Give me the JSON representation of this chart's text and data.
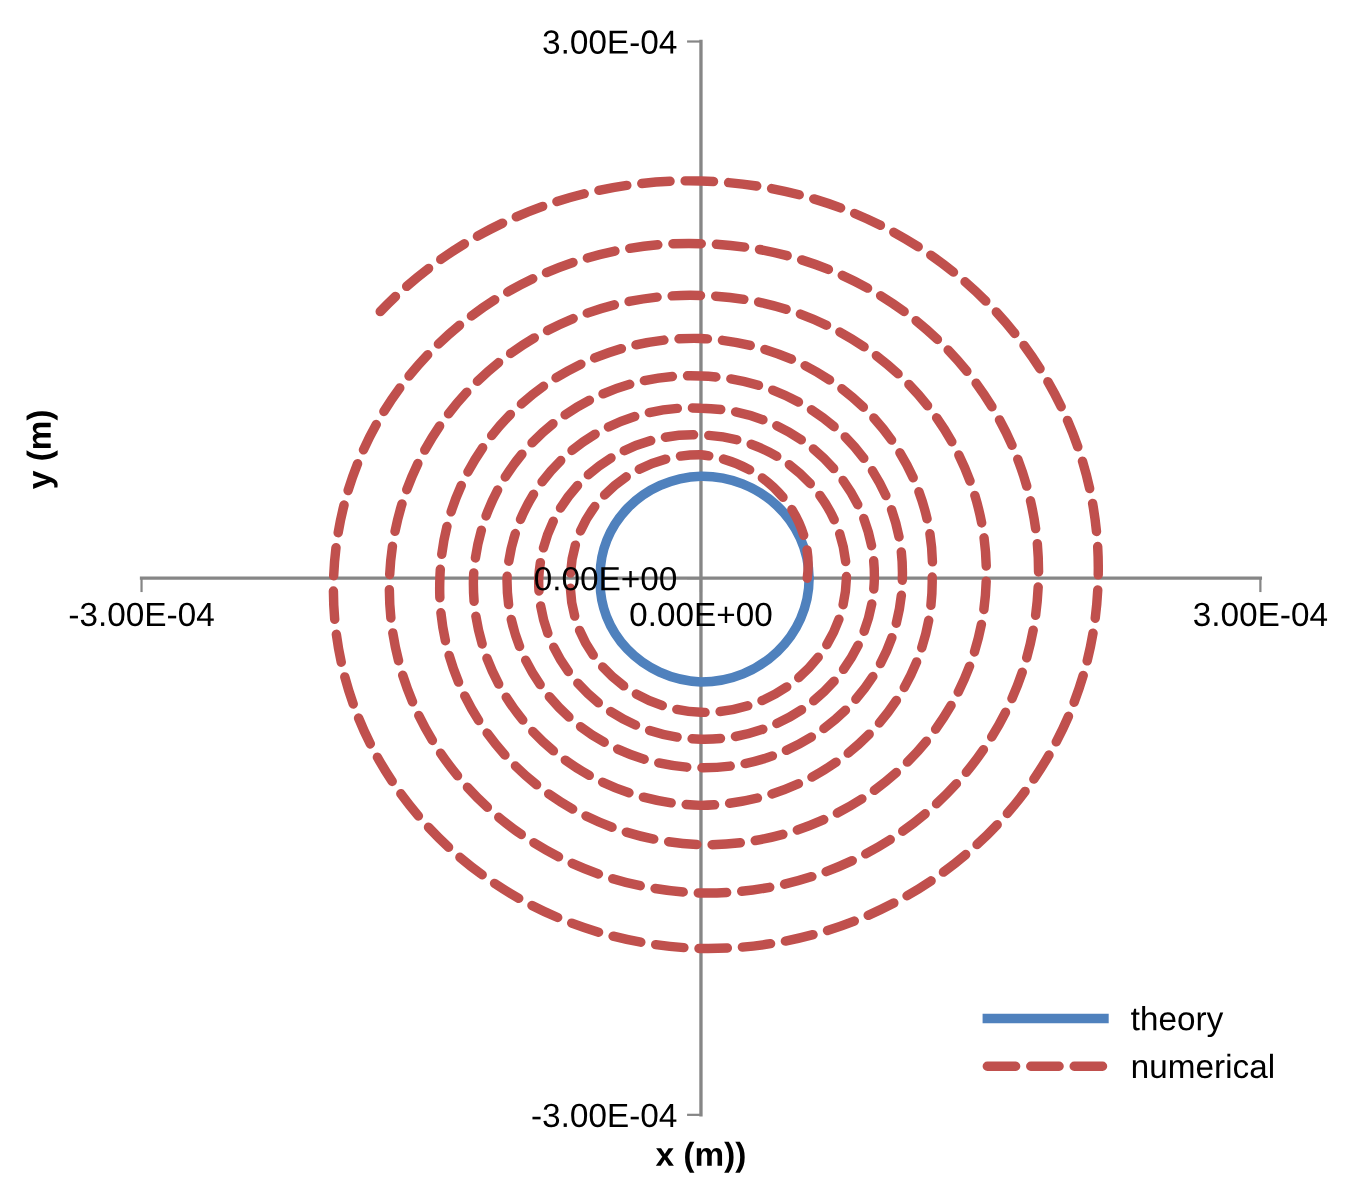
{
  "chart_data": {
    "type": "line",
    "xlabel": "x (m))",
    "ylabel": "y (m)",
    "xlim": [
      -0.0003,
      0.0003
    ],
    "ylim": [
      -0.0003,
      0.0003
    ],
    "xticks": [
      {
        "value": -0.0003,
        "label": "-3.00E-04"
      },
      {
        "value": 0,
        "label": "0.00E+00"
      },
      {
        "value": 0.0003,
        "label": "3.00E-04"
      }
    ],
    "yticks": [
      {
        "value": -0.0003,
        "label": "-3.00E-04"
      },
      {
        "value": 0,
        "label": "0.00E+00"
      },
      {
        "value": 0.0003,
        "label": "3.00E-04"
      }
    ],
    "grid": false,
    "legend": "bottom right",
    "marker": "none",
    "series": [
      {
        "name": "theory",
        "color": "#4f81bd",
        "line_style": "solid",
        "x": [
          5.8e-05,
          0,
          -5.4e-05,
          0,
          5.8e-05
        ],
        "values": [
          0,
          5.7e-05,
          0,
          -5.8e-05,
          0
        ]
      },
      {
        "name": "numerical",
        "color": "#c0504d",
        "line_style": "dashed",
        "x": [
          5.7e-05,
          0,
          -7e-05,
          0,
          7.8e-05,
          0,
          -8.7e-05,
          0,
          9.3e-05,
          0,
          -0.000104,
          0,
          0.000108,
          0,
          -0.000122,
          0,
          0.000124,
          0,
          -0.00014,
          0,
          0.000153,
          0,
          -0.000167,
          0,
          0.000181,
          0,
          -0.000197,
          0,
          0.000213,
          0,
          -0.000172
        ],
        "values": [
          0,
          6.9e-05,
          0,
          -7.5e-05,
          0,
          8e-05,
          0,
          -9e-05,
          0,
          9.5e-05,
          0,
          -0.000106,
          0,
          0.000113,
          0,
          -0.000127,
          0,
          0.000134,
          0,
          -0.000149,
          0,
          0.000158,
          0,
          -0.000176,
          0,
          0.000187,
          0,
          -0.000207,
          0,
          0.000222,
          0.000149
        ]
      }
    ]
  }
}
